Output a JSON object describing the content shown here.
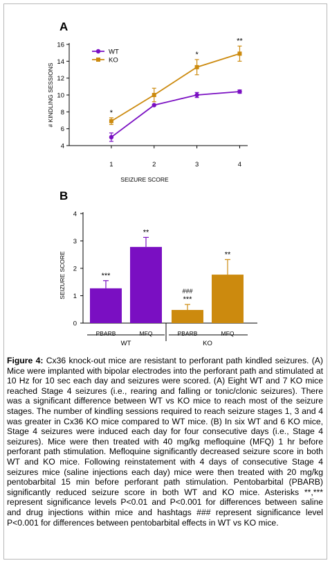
{
  "panels": {
    "a": {
      "letter": "A"
    },
    "b": {
      "letter": "B"
    }
  },
  "colors": {
    "wt": "#7a0fc2",
    "ko": "#cc8a0e"
  },
  "chart_data": [
    {
      "type": "line",
      "panel": "A",
      "xlabel": "SEIZURE SCORE",
      "ylabel": "# KINDLING SESSIONS",
      "x": [
        1,
        2,
        3,
        4
      ],
      "xlim": [
        0.5,
        4.3
      ],
      "ylim": [
        4,
        16
      ],
      "yticks": [
        4,
        6,
        8,
        10,
        12,
        14,
        16
      ],
      "legend": "top-left",
      "grid": false,
      "series": [
        {
          "name": "WT",
          "values": [
            5.0,
            8.8,
            10.0,
            10.4
          ],
          "errors": [
            0.5,
            0.0,
            0.3,
            0.2
          ],
          "marker": "circle"
        },
        {
          "name": "KO",
          "values": [
            6.9,
            10.0,
            13.3,
            14.9
          ],
          "errors": [
            0.4,
            0.8,
            0.9,
            0.9
          ],
          "marker": "square"
        }
      ],
      "annotations": [
        {
          "x": 1,
          "text": "*"
        },
        {
          "x": 3,
          "text": "*"
        },
        {
          "x": 4,
          "text": "**"
        }
      ]
    },
    {
      "type": "bar",
      "panel": "B",
      "ylabel": "SEIZURE SCORE",
      "ylim": [
        0,
        4
      ],
      "yticks": [
        0,
        1,
        2,
        3,
        4
      ],
      "grid": false,
      "categories": [
        "PBARB",
        "MFQ",
        "PBARB",
        "MFQ"
      ],
      "groups": [
        {
          "label": "WT",
          "bars": [
            0,
            1
          ]
        },
        {
          "label": "KO",
          "bars": [
            2,
            3
          ]
        }
      ],
      "values": [
        1.27,
        2.78,
        0.48,
        1.77
      ],
      "errors": [
        0.28,
        0.35,
        0.2,
        0.55
      ],
      "bar_colors": [
        "#7a0fc2",
        "#7a0fc2",
        "#cc8a0e",
        "#cc8a0e"
      ],
      "annotations": [
        {
          "bar": 0,
          "text": "***"
        },
        {
          "bar": 1,
          "text": "**"
        },
        {
          "bar": 2,
          "text": "***",
          "extra": "###"
        },
        {
          "bar": 3,
          "text": "**"
        }
      ]
    }
  ],
  "caption": {
    "label": "Figure 4:",
    "text": " Cx36 knock-out mice are resistant to perforant path kindled seizures. (A) Mice were implanted with bipolar electrodes into the perforant path and stimulated at 10 Hz for 10 sec each day and seizures were scored. (A) Eight WT and 7 KO mice reached Stage 4 seizures (i.e., rearing and falling or tonic/clonic seizures). There was a significant difference between WT vs KO mice to reach most of the seizure stages. The number of kindling sessions required to reach seizure stages 1, 3 and 4 was greater in Cx36 KO mice compared to WT mice. (B) In six WT and 6 KO mice, Stage 4 seizures were induced each day for four consecutive days (i.e., Stage 4 seizures). Mice were then treated with 40 mg/kg mefloquine (MFQ) 1 hr before perforant path stimulation. Mefloquine significantly decreased seizure score in both WT and KO mice. Following reinstatement with 4 days of consecutive Stage 4 seizures mice (saline injections each day) mice were then treated with 20 mg/kg pentobarbital 15 min before perforant path stimulation. Pentobarbital (PBARB) significantly reduced seizure score in both WT and KO mice. Asterisks **,*** represent significance levels P<0.01 and P<0.001 for differences between saline and drug injections within mice and hashtags ### represent significance level P<0.001 for differences between pentobarbital effects in WT vs KO mice."
  }
}
